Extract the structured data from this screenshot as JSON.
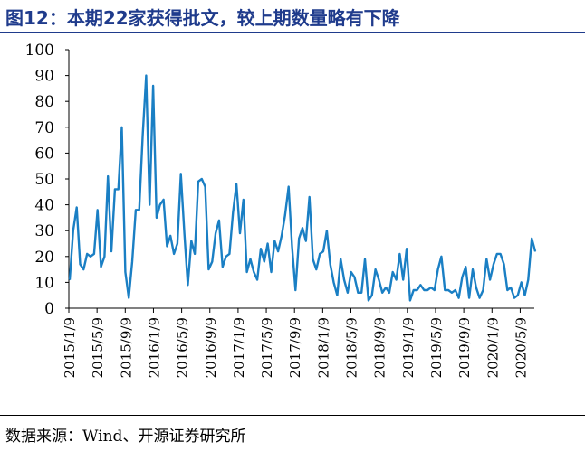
{
  "title": "图12：本期22家获得批文，较上期数量略有下降",
  "source": "数据来源：Wind、开源证券研究所",
  "colors": {
    "title": "#1f3b8c",
    "line": "#1a7fc4"
  },
  "chart_data": {
    "type": "line",
    "title": "图12：本期22家获得批文，较上期数量略有下降",
    "xlabel": "",
    "ylabel": "",
    "ylim": [
      0,
      100
    ],
    "yticks": [
      0,
      10,
      20,
      30,
      40,
      50,
      60,
      70,
      80,
      90,
      100
    ],
    "grid": false,
    "legend": "none",
    "x_ticks": [
      "2015/1/9",
      "2015/5/9",
      "2015/9/9",
      "2016/1/9",
      "2016/5/9",
      "2016/9/9",
      "2017/1/9",
      "2017/5/9",
      "2017/9/9",
      "2018/1/9",
      "2018/5/9",
      "2018/9/9",
      "2019/1/9",
      "2019/5/9",
      "2019/9/9",
      "2020/1/9",
      "2020/5/9"
    ],
    "series": [
      {
        "values": [
          11,
          30,
          39,
          17,
          15,
          21,
          20,
          21,
          38,
          16,
          20,
          51,
          22,
          46,
          46,
          70,
          14,
          4,
          18,
          38,
          38,
          67,
          90,
          40,
          86,
          35,
          40,
          42,
          24,
          28,
          21,
          25,
          52,
          29,
          9,
          26,
          21,
          49,
          50,
          47,
          15,
          18,
          29,
          34,
          16,
          20,
          21,
          37,
          48,
          29,
          42,
          14,
          19,
          14,
          11,
          23,
          18,
          25,
          14,
          26,
          22,
          28,
          36,
          47,
          24,
          7,
          27,
          31,
          26,
          43,
          19,
          15,
          21,
          22,
          30,
          17,
          10,
          5,
          19,
          11,
          6,
          14,
          12,
          6,
          6,
          19,
          3,
          5,
          15,
          11,
          6,
          8,
          6,
          14,
          11,
          21,
          11,
          23,
          3,
          7,
          7,
          9,
          7,
          7,
          8,
          7,
          15,
          20,
          7,
          7,
          6,
          7,
          4,
          12,
          16,
          4,
          15,
          8,
          4,
          7,
          19,
          11,
          17,
          21,
          21,
          17,
          7,
          8,
          4,
          5,
          10,
          5,
          11,
          27,
          22
        ]
      }
    ]
  }
}
